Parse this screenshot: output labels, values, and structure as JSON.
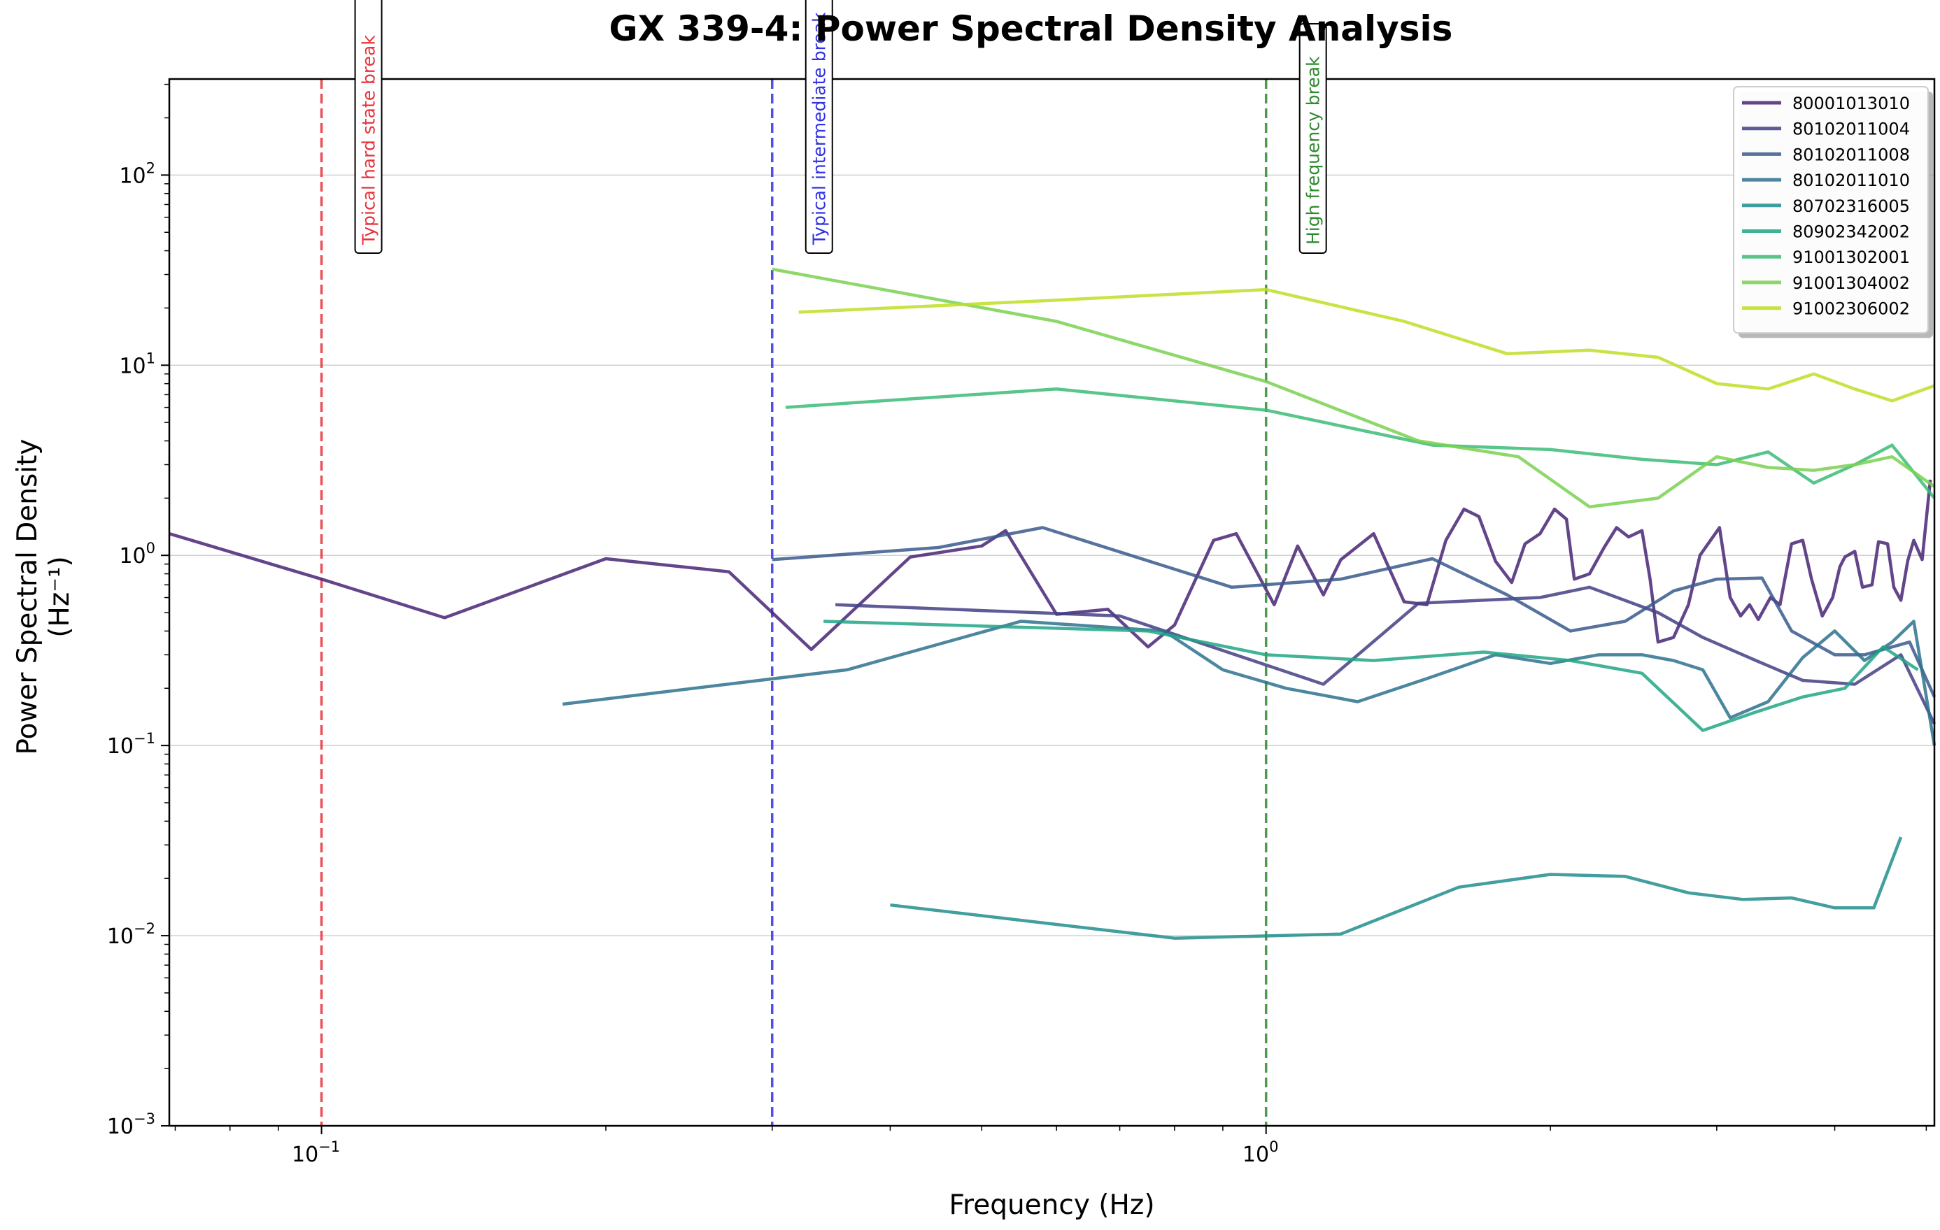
{
  "chart_data": {
    "type": "line",
    "title": "GX 339-4: Power Spectral Density Analysis",
    "xlabel": "Frequency (Hz)",
    "ylabel": "Power Spectral Density",
    "ylabel_unit": "(Hz⁻¹)",
    "xscale": "log",
    "yscale": "log",
    "xlim": [
      0.069,
      5.1
    ],
    "ylim": [
      0.001,
      320
    ],
    "grid": "y-major",
    "legend_position": "top-right",
    "x_ticks": [
      {
        "value": 0.1,
        "base": "10",
        "exp": "−1"
      },
      {
        "value": 1,
        "base": "10",
        "exp": "0"
      }
    ],
    "y_ticks": [
      {
        "value": 0.001,
        "base": "10",
        "exp": "−3"
      },
      {
        "value": 0.01,
        "base": "10",
        "exp": "−2"
      },
      {
        "value": 0.1,
        "base": "10",
        "exp": "−1"
      },
      {
        "value": 1,
        "base": "10",
        "exp": "0"
      },
      {
        "value": 10,
        "base": "10",
        "exp": "1"
      },
      {
        "value": 100,
        "base": "10",
        "exp": "2"
      }
    ],
    "reference_lines": [
      {
        "x": 0.1,
        "label": "Typical hard state break",
        "color": "#e8323c"
      },
      {
        "x": 0.3,
        "label": "Typical intermediate break",
        "color": "#3232e6"
      },
      {
        "x": 1.0,
        "label": "High frequency break",
        "color": "#2e8b2e"
      }
    ],
    "series": [
      {
        "name": "80001013010",
        "color": "#482576",
        "x": [
          0.069,
          0.1,
          0.135,
          0.2,
          0.27,
          0.33,
          0.42,
          0.5,
          0.53,
          0.6,
          0.68,
          0.75,
          0.8,
          0.88,
          0.93,
          1.02,
          1.08,
          1.15,
          1.2,
          1.3,
          1.4,
          1.48,
          1.55,
          1.62,
          1.68,
          1.75,
          1.82,
          1.88,
          1.95,
          2.02,
          2.08,
          2.12,
          2.2,
          2.28,
          2.35,
          2.42,
          2.5,
          2.55,
          2.6,
          2.7,
          2.8,
          2.88,
          3.02,
          3.1,
          3.18,
          3.25,
          3.32,
          3.42,
          3.5,
          3.6,
          3.7,
          3.78,
          3.88,
          3.98,
          4.05,
          4.1,
          4.2,
          4.28,
          4.38,
          4.45,
          4.55,
          4.62,
          4.7,
          4.78,
          4.85,
          4.95,
          5.05
        ],
        "y": [
          1.3,
          0.75,
          0.47,
          0.96,
          0.82,
          0.32,
          0.98,
          1.12,
          1.35,
          0.49,
          0.52,
          0.33,
          0.43,
          1.2,
          1.3,
          0.55,
          1.12,
          0.62,
          0.95,
          1.3,
          0.57,
          0.55,
          1.2,
          1.75,
          1.6,
          0.93,
          0.72,
          1.15,
          1.3,
          1.75,
          1.55,
          0.75,
          0.8,
          1.1,
          1.4,
          1.25,
          1.35,
          0.75,
          0.35,
          0.37,
          0.55,
          1.0,
          1.4,
          0.6,
          0.48,
          0.55,
          0.46,
          0.6,
          0.55,
          1.15,
          1.2,
          0.75,
          0.48,
          0.6,
          0.87,
          0.98,
          1.05,
          0.68,
          0.7,
          1.18,
          1.15,
          0.68,
          0.58,
          0.94,
          1.2,
          0.95,
          2.5
        ]
      },
      {
        "name": "80102011004",
        "color": "#433e85",
        "x": [
          0.35,
          0.7,
          1.15,
          1.45,
          1.95,
          2.2,
          2.6,
          2.9,
          3.3,
          3.7,
          4.2,
          4.7,
          5.1
        ],
        "y": [
          0.55,
          0.48,
          0.21,
          0.56,
          0.6,
          0.68,
          0.5,
          0.37,
          0.28,
          0.22,
          0.21,
          0.3,
          0.13
        ]
      },
      {
        "name": "80102011008",
        "color": "#38598c",
        "x": [
          0.3,
          0.45,
          0.58,
          0.92,
          1.2,
          1.5,
          1.8,
          2.1,
          2.4,
          2.7,
          3.0,
          3.35,
          3.6,
          4.0,
          4.3,
          4.8,
          5.1
        ],
        "y": [
          0.95,
          1.1,
          1.4,
          0.68,
          0.75,
          0.96,
          0.62,
          0.4,
          0.45,
          0.65,
          0.75,
          0.76,
          0.4,
          0.3,
          0.3,
          0.35,
          0.18
        ]
      },
      {
        "name": "80102011010",
        "color": "#2d718e",
        "x": [
          0.18,
          0.36,
          0.55,
          0.78,
          0.9,
          1.05,
          1.25,
          1.5,
          1.75,
          2.0,
          2.25,
          2.5,
          2.7,
          2.9,
          3.1,
          3.4,
          3.7,
          4.0,
          4.3,
          4.6,
          4.85,
          5.1
        ],
        "y": [
          0.165,
          0.25,
          0.45,
          0.4,
          0.25,
          0.2,
          0.17,
          0.23,
          0.3,
          0.27,
          0.3,
          0.3,
          0.28,
          0.25,
          0.14,
          0.17,
          0.29,
          0.4,
          0.28,
          0.35,
          0.45,
          0.1
        ]
      },
      {
        "name": "80702316005",
        "color": "#218e8d",
        "x": [
          0.4,
          0.8,
          1.2,
          1.6,
          2.0,
          2.4,
          2.8,
          3.2,
          3.6,
          4.0,
          4.4,
          4.7
        ],
        "y": [
          0.0145,
          0.0097,
          0.0102,
          0.018,
          0.021,
          0.0205,
          0.0168,
          0.0155,
          0.0158,
          0.014,
          0.014,
          0.033
        ]
      },
      {
        "name": "80902342002",
        "color": "#21a685",
        "x": [
          0.34,
          0.75,
          1.0,
          1.3,
          1.7,
          2.1,
          2.5,
          2.9,
          3.3,
          3.7,
          4.1,
          4.5,
          4.9
        ],
        "y": [
          0.45,
          0.4,
          0.3,
          0.28,
          0.31,
          0.28,
          0.24,
          0.12,
          0.15,
          0.18,
          0.2,
          0.33,
          0.25
        ]
      },
      {
        "name": "91001302001",
        "color": "#3bbb75",
        "x": [
          0.31,
          0.6,
          1.0,
          1.5,
          2.0,
          2.5,
          3.0,
          3.4,
          3.8,
          4.2,
          4.6,
          5.1
        ],
        "y": [
          6.0,
          7.5,
          5.8,
          3.8,
          3.6,
          3.2,
          3.0,
          3.5,
          2.4,
          3.0,
          3.8,
          2.0
        ]
      },
      {
        "name": "91001304002",
        "color": "#7ad151",
        "x": [
          0.3,
          0.6,
          1.0,
          1.45,
          1.85,
          2.2,
          2.6,
          3.0,
          3.4,
          3.8,
          4.2,
          4.6,
          5.1
        ],
        "y": [
          32.0,
          17.0,
          8.2,
          4.0,
          3.3,
          1.8,
          2.0,
          3.3,
          2.9,
          2.8,
          3.0,
          3.3,
          2.3
        ]
      },
      {
        "name": "91002306002",
        "color": "#bddf26",
        "x": [
          0.32,
          0.6,
          1.0,
          1.4,
          1.8,
          2.2,
          2.6,
          3.0,
          3.4,
          3.8,
          4.2,
          4.6,
          5.1
        ],
        "y": [
          19.0,
          22.0,
          25.0,
          17.0,
          11.5,
          12.0,
          11.0,
          8.0,
          7.5,
          9.0,
          7.5,
          6.5,
          7.8
        ]
      }
    ]
  }
}
